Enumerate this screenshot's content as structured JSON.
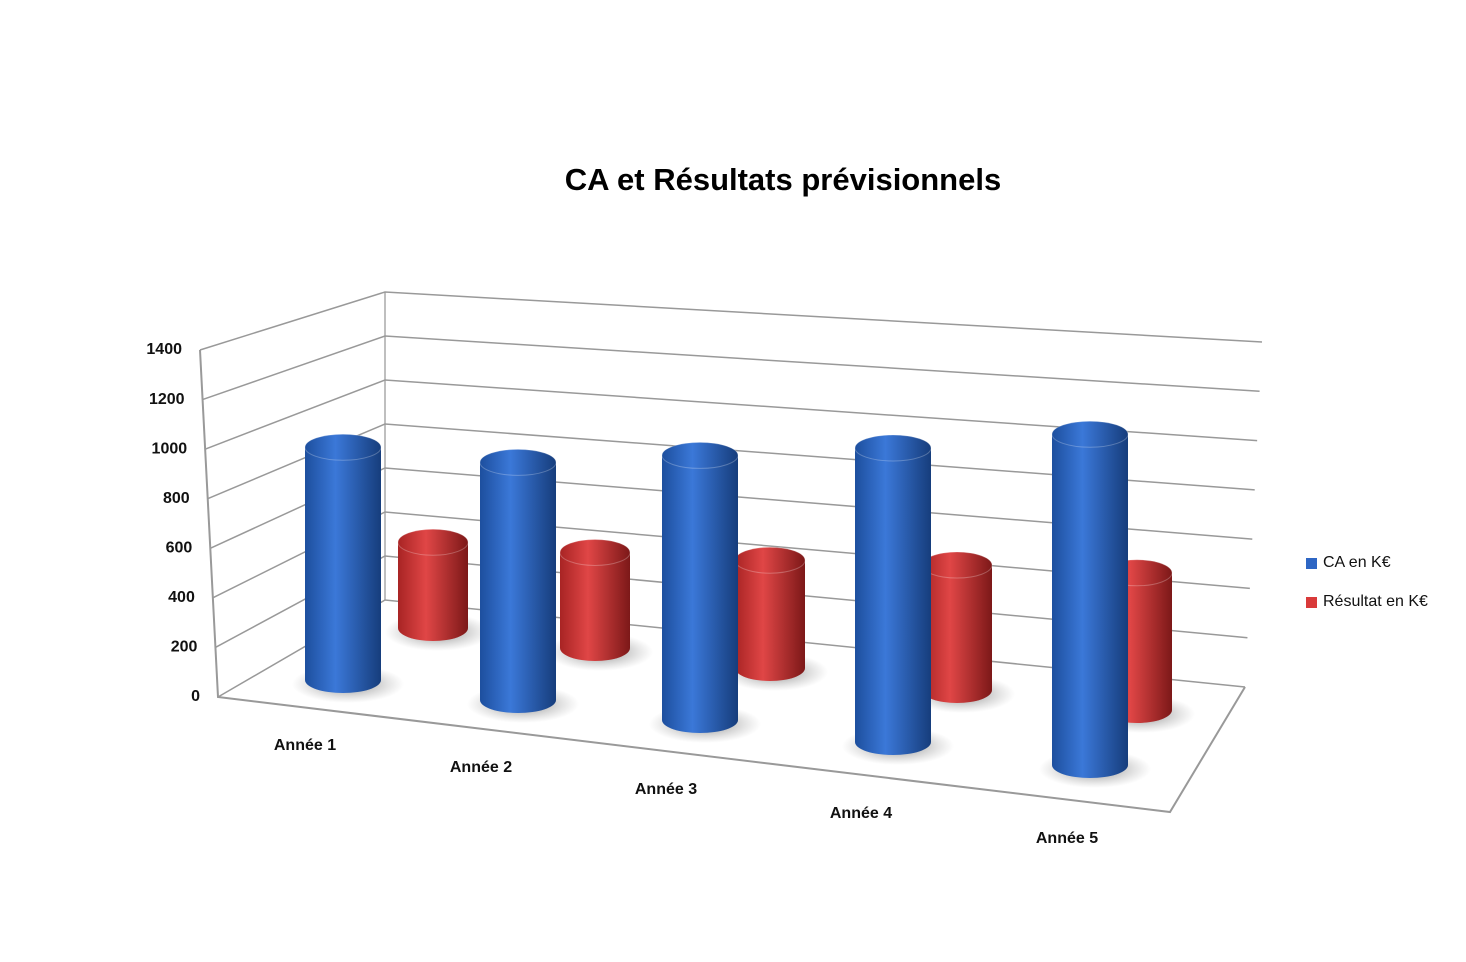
{
  "chart_data": {
    "type": "bar3d-cylinder",
    "title": "CA et Résultats prévisionnels",
    "categories": [
      "Année 1",
      "Année 2",
      "Année 3",
      "Année 4",
      "Année 5"
    ],
    "series": [
      {
        "name": "CA en K€",
        "color": "#2e66c4",
        "values": [
          950,
          970,
          1080,
          1200,
          1350
        ]
      },
      {
        "name": "Résultat en K€",
        "color": "#d93a3a",
        "values": [
          350,
          390,
          440,
          510,
          560
        ]
      }
    ],
    "ylim": [
      0,
      1400
    ],
    "yticks": [
      0,
      200,
      400,
      600,
      800,
      1000,
      1200,
      1400
    ],
    "grid": true,
    "legend": "right"
  }
}
